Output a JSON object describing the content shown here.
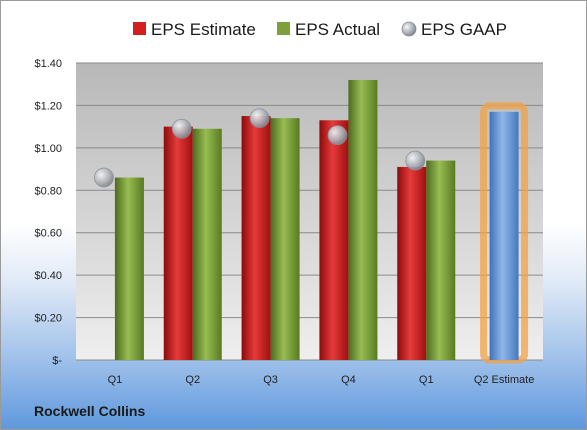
{
  "company": "Rockwell Collins",
  "chart_data": {
    "type": "bar",
    "categories": [
      "Q1",
      "Q2",
      "Q3",
      "Q4",
      "Q1",
      "Q2 Estimate"
    ],
    "series": [
      {
        "name": "EPS Estimate",
        "kind": "bar",
        "color": "#d21f1f",
        "values": [
          null,
          1.1,
          1.15,
          1.13,
          0.91,
          1.17
        ]
      },
      {
        "name": "EPS Actual",
        "kind": "bar",
        "color": "#7ea03a",
        "values": [
          0.86,
          1.09,
          1.14,
          1.32,
          0.94,
          null
        ]
      },
      {
        "name": "EPS GAAP",
        "kind": "marker",
        "color": "#b8bcc4",
        "values": [
          0.86,
          1.09,
          1.14,
          1.06,
          0.94,
          null
        ]
      }
    ],
    "highlight": {
      "category_index": 5,
      "bar_color": "#6fa0d8",
      "glow_color": "#f2a145"
    },
    "y_ticks": [
      "$-",
      "$0.20",
      "$0.40",
      "$0.60",
      "$0.80",
      "$1.00",
      "$1.20",
      "$1.40"
    ],
    "y_tick_values": [
      0,
      0.2,
      0.4,
      0.6,
      0.8,
      1.0,
      1.2,
      1.4
    ],
    "ylim": [
      0,
      1.4
    ],
    "grid": true,
    "legend_position": "top"
  }
}
